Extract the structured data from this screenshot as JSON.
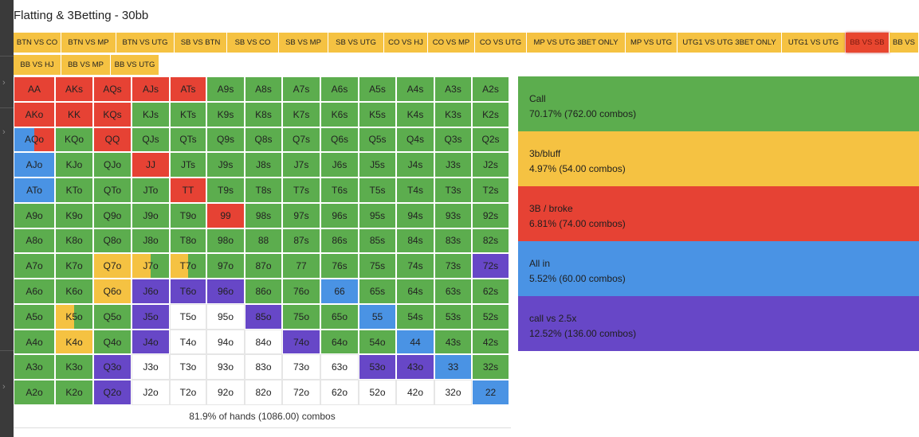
{
  "title": "Flatting & 3Betting - 30bb",
  "colors": {
    "call": "#5cad4e",
    "bluff": "#f5c242",
    "broke": "#e64234",
    "allin": "#4a93e4",
    "call25": "#6747c7",
    "fold": "#ffffff",
    "tab": "#f5c242",
    "tab_active": "#e8462f"
  },
  "tabs": [
    {
      "label": "BTN VS CO"
    },
    {
      "label": "BTN VS MP"
    },
    {
      "label": "BTN VS UTG"
    },
    {
      "label": "SB VS BTN"
    },
    {
      "label": "SB VS CO"
    },
    {
      "label": "SB VS MP"
    },
    {
      "label": "SB VS UTG"
    },
    {
      "label": "CO VS HJ"
    },
    {
      "label": "CO VS MP"
    },
    {
      "label": "CO VS UTG"
    },
    {
      "label": "MP VS UTG 3BET ONLY"
    },
    {
      "label": "MP VS UTG"
    },
    {
      "label": "UTG1 VS UTG 3BET ONLY"
    },
    {
      "label": "UTG1 VS UTG"
    },
    {
      "label": "BB VS SB",
      "active": true
    },
    {
      "label": "BB VS"
    },
    {
      "label": "BB VS HJ"
    },
    {
      "label": "BB VS MP"
    },
    {
      "label": "BB VS UTG"
    }
  ],
  "grid": [
    [
      [
        "AA",
        "broke"
      ],
      [
        "AKs",
        "broke"
      ],
      [
        "AQs",
        "broke"
      ],
      [
        "AJs",
        "broke"
      ],
      [
        "ATs",
        "broke"
      ],
      [
        "A9s",
        "call"
      ],
      [
        "A8s",
        "call"
      ],
      [
        "A7s",
        "call"
      ],
      [
        "A6s",
        "call"
      ],
      [
        "A5s",
        "call"
      ],
      [
        "A4s",
        "call"
      ],
      [
        "A3s",
        "call"
      ],
      [
        "A2s",
        "call"
      ]
    ],
    [
      [
        "AKo",
        "broke"
      ],
      [
        "KK",
        "broke"
      ],
      [
        "KQs",
        "broke"
      ],
      [
        "KJs",
        "call"
      ],
      [
        "KTs",
        "call"
      ],
      [
        "K9s",
        "call"
      ],
      [
        "K8s",
        "call"
      ],
      [
        "K7s",
        "call"
      ],
      [
        "K6s",
        "call"
      ],
      [
        "K5s",
        "call"
      ],
      [
        "K4s",
        "call"
      ],
      [
        "K3s",
        "call"
      ],
      [
        "K2s",
        "call"
      ]
    ],
    [
      [
        "AQo",
        "allin",
        "broke",
        0.5
      ],
      [
        "KQo",
        "call"
      ],
      [
        "QQ",
        "broke"
      ],
      [
        "QJs",
        "call"
      ],
      [
        "QTs",
        "call"
      ],
      [
        "Q9s",
        "call"
      ],
      [
        "Q8s",
        "call"
      ],
      [
        "Q7s",
        "call"
      ],
      [
        "Q6s",
        "call"
      ],
      [
        "Q5s",
        "call"
      ],
      [
        "Q4s",
        "call"
      ],
      [
        "Q3s",
        "call"
      ],
      [
        "Q2s",
        "call"
      ]
    ],
    [
      [
        "AJo",
        "allin"
      ],
      [
        "KJo",
        "call"
      ],
      [
        "QJo",
        "call"
      ],
      [
        "JJ",
        "broke"
      ],
      [
        "JTs",
        "call"
      ],
      [
        "J9s",
        "call"
      ],
      [
        "J8s",
        "call"
      ],
      [
        "J7s",
        "call"
      ],
      [
        "J6s",
        "call"
      ],
      [
        "J5s",
        "call"
      ],
      [
        "J4s",
        "call"
      ],
      [
        "J3s",
        "call"
      ],
      [
        "J2s",
        "call"
      ]
    ],
    [
      [
        "ATo",
        "allin"
      ],
      [
        "KTo",
        "call"
      ],
      [
        "QTo",
        "call"
      ],
      [
        "JTo",
        "call"
      ],
      [
        "TT",
        "broke"
      ],
      [
        "T9s",
        "call"
      ],
      [
        "T8s",
        "call"
      ],
      [
        "T7s",
        "call"
      ],
      [
        "T6s",
        "call"
      ],
      [
        "T5s",
        "call"
      ],
      [
        "T4s",
        "call"
      ],
      [
        "T3s",
        "call"
      ],
      [
        "T2s",
        "call"
      ]
    ],
    [
      [
        "A9o",
        "call"
      ],
      [
        "K9o",
        "call"
      ],
      [
        "Q9o",
        "call"
      ],
      [
        "J9o",
        "call"
      ],
      [
        "T9o",
        "call"
      ],
      [
        "99",
        "broke"
      ],
      [
        "98s",
        "call"
      ],
      [
        "97s",
        "call"
      ],
      [
        "96s",
        "call"
      ],
      [
        "95s",
        "call"
      ],
      [
        "94s",
        "call"
      ],
      [
        "93s",
        "call"
      ],
      [
        "92s",
        "call"
      ]
    ],
    [
      [
        "A8o",
        "call"
      ],
      [
        "K8o",
        "call"
      ],
      [
        "Q8o",
        "call"
      ],
      [
        "J8o",
        "call"
      ],
      [
        "T8o",
        "call"
      ],
      [
        "98o",
        "call"
      ],
      [
        "88",
        "call"
      ],
      [
        "87s",
        "call"
      ],
      [
        "86s",
        "call"
      ],
      [
        "85s",
        "call"
      ],
      [
        "84s",
        "call"
      ],
      [
        "83s",
        "call"
      ],
      [
        "82s",
        "call"
      ]
    ],
    [
      [
        "A7o",
        "call"
      ],
      [
        "K7o",
        "call"
      ],
      [
        "Q7o",
        "bluff"
      ],
      [
        "J7o",
        "bluff",
        "call",
        0.5
      ],
      [
        "T7o",
        "bluff",
        "call",
        0.5
      ],
      [
        "97o",
        "call"
      ],
      [
        "87o",
        "call"
      ],
      [
        "77",
        "call"
      ],
      [
        "76s",
        "call"
      ],
      [
        "75s",
        "call"
      ],
      [
        "74s",
        "call"
      ],
      [
        "73s",
        "call"
      ],
      [
        "72s",
        "call25"
      ]
    ],
    [
      [
        "A6o",
        "call"
      ],
      [
        "K6o",
        "call"
      ],
      [
        "Q6o",
        "bluff"
      ],
      [
        "J6o",
        "call25"
      ],
      [
        "T6o",
        "call25"
      ],
      [
        "96o",
        "call25"
      ],
      [
        "86o",
        "call"
      ],
      [
        "76o",
        "call"
      ],
      [
        "66",
        "allin"
      ],
      [
        "65s",
        "call"
      ],
      [
        "64s",
        "call"
      ],
      [
        "63s",
        "call"
      ],
      [
        "62s",
        "call"
      ]
    ],
    [
      [
        "A5o",
        "call"
      ],
      [
        "K5o",
        "bluff",
        "call",
        0.5
      ],
      [
        "Q5o",
        "call"
      ],
      [
        "J5o",
        "call25"
      ],
      [
        "T5o",
        "fold"
      ],
      [
        "95o",
        "fold"
      ],
      [
        "85o",
        "call25"
      ],
      [
        "75o",
        "call"
      ],
      [
        "65o",
        "call"
      ],
      [
        "55",
        "allin"
      ],
      [
        "54s",
        "call"
      ],
      [
        "53s",
        "call"
      ],
      [
        "52s",
        "call"
      ]
    ],
    [
      [
        "A4o",
        "call"
      ],
      [
        "K4o",
        "bluff"
      ],
      [
        "Q4o",
        "call"
      ],
      [
        "J4o",
        "call25"
      ],
      [
        "T4o",
        "fold"
      ],
      [
        "94o",
        "fold"
      ],
      [
        "84o",
        "fold"
      ],
      [
        "74o",
        "call25"
      ],
      [
        "64o",
        "call"
      ],
      [
        "54o",
        "call"
      ],
      [
        "44",
        "allin"
      ],
      [
        "43s",
        "call"
      ],
      [
        "42s",
        "call"
      ]
    ],
    [
      [
        "A3o",
        "call"
      ],
      [
        "K3o",
        "call"
      ],
      [
        "Q3o",
        "call25"
      ],
      [
        "J3o",
        "fold"
      ],
      [
        "T3o",
        "fold"
      ],
      [
        "93o",
        "fold"
      ],
      [
        "83o",
        "fold"
      ],
      [
        "73o",
        "fold"
      ],
      [
        "63o",
        "fold"
      ],
      [
        "53o",
        "call25"
      ],
      [
        "43o",
        "call25"
      ],
      [
        "33",
        "allin"
      ],
      [
        "32s",
        "call"
      ]
    ],
    [
      [
        "A2o",
        "call"
      ],
      [
        "K2o",
        "call"
      ],
      [
        "Q2o",
        "call25"
      ],
      [
        "J2o",
        "fold"
      ],
      [
        "T2o",
        "fold"
      ],
      [
        "92o",
        "fold"
      ],
      [
        "82o",
        "fold"
      ],
      [
        "72o",
        "fold"
      ],
      [
        "62o",
        "fold"
      ],
      [
        "52o",
        "fold"
      ],
      [
        "42o",
        "fold"
      ],
      [
        "32o",
        "fold"
      ],
      [
        "22",
        "allin"
      ]
    ]
  ],
  "summary": "81.9% of hands (1086.00) combos",
  "legend": [
    {
      "key": "call",
      "label": "Call",
      "value": "70.17% (762.00 combos)"
    },
    {
      "key": "bluff",
      "label": "3b/bluff",
      "value": "4.97% (54.00 combos)"
    },
    {
      "key": "broke",
      "label": "3B / broke",
      "value": "6.81% (74.00 combos)"
    },
    {
      "key": "allin",
      "label": "All in",
      "value": "5.52% (60.00 combos)"
    },
    {
      "key": "call25",
      "label": "call vs 2.5x",
      "value": "12.52% (136.00 combos)"
    }
  ]
}
